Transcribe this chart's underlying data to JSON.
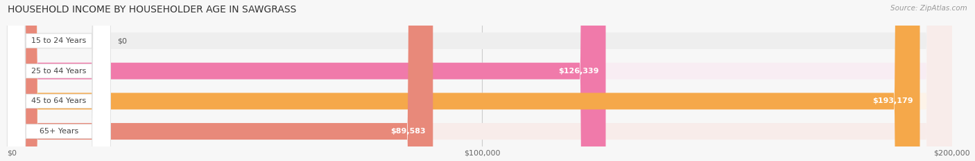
{
  "title": "HOUSEHOLD INCOME BY HOUSEHOLDER AGE IN SAWGRASS",
  "source": "Source: ZipAtlas.com",
  "categories": [
    "15 to 24 Years",
    "25 to 44 Years",
    "45 to 64 Years",
    "65+ Years"
  ],
  "values": [
    0,
    126339,
    193179,
    89583
  ],
  "bar_colors": [
    "#b0aed8",
    "#f07aaa",
    "#f5a84a",
    "#e8897a"
  ],
  "bar_bg_colors": [
    "#eeeeee",
    "#f8edf3",
    "#fdf3e8",
    "#f8ecea"
  ],
  "xlim": [
    0,
    200000
  ],
  "xticks": [
    0,
    100000,
    200000
  ],
  "xtick_labels": [
    "$0",
    "$100,000",
    "$200,000"
  ],
  "value_labels": [
    "$0",
    "$126,339",
    "$193,179",
    "$89,583"
  ],
  "figsize": [
    14.06,
    2.33
  ],
  "dpi": 100
}
